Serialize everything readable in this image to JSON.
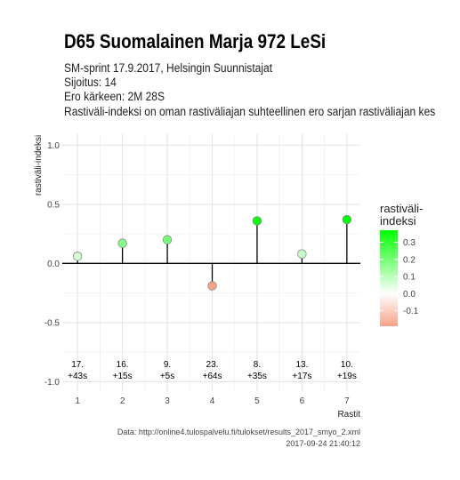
{
  "chart_data": {
    "type": "lollipop",
    "title": "D65 Suomalainen Marja 972 LeSi",
    "subtitle": [
      "SM-sprint 17.9.2017, Helsingin Suunnistajat",
      "Sijoitus: 14",
      "Ero kärkeen: 2M 28S",
      "Rastiväli-indeksi on oman rastiväliajan suhteellinen ero sarjan rastiväliajan kes"
    ],
    "y_label": "rastiväli-indeksi",
    "x_label": "Rastit",
    "x": [
      1,
      2,
      3,
      4,
      5,
      6,
      7
    ],
    "values": [
      0.06,
      0.17,
      0.2,
      -0.19,
      0.36,
      0.08,
      0.37
    ],
    "point_labels": [
      "17.",
      "16.",
      "9.",
      "23.",
      "8.",
      "13.",
      "10."
    ],
    "point_sublabels": [
      "+43s",
      "+15s",
      "+5s",
      "+64s",
      "+35s",
      "+17s",
      "+19s"
    ],
    "label_y": [
      -0.85,
      -0.95
    ],
    "xlim": [
      0.66,
      7.3
    ],
    "ylim": [
      -1.08,
      1.1
    ],
    "xticks": [
      1,
      2,
      3,
      4,
      5,
      6,
      7
    ],
    "x_minor_ticks": [
      1.5,
      2.5,
      3.5,
      4.5,
      5.5,
      6.5
    ],
    "yticks": [
      {
        "value": -1,
        "label": "-1.0"
      },
      {
        "value": -0.5,
        "label": "-0.5"
      },
      {
        "value": 0,
        "label": "0.0"
      },
      {
        "value": 0.5,
        "label": "0.5"
      },
      {
        "value": 1,
        "label": "1.0"
      }
    ],
    "y_minor_ticks": [
      -0.75,
      -0.25,
      0.25,
      0.75
    ],
    "hline": 0,
    "grid": true,
    "colorbar": {
      "title": [
        "rastiväli-",
        "indeksi"
      ],
      "limits": [
        -0.19,
        0.37
      ],
      "colors": {
        "low": "#f6a287",
        "mid": "#ffffff",
        "high": "#00ff00"
      },
      "ticks": [
        {
          "value": 0.3,
          "label": "0.3"
        },
        {
          "value": 0.2,
          "label": "0.2"
        },
        {
          "value": 0.1,
          "label": "0.1"
        },
        {
          "value": 0,
          "label": "0.0"
        },
        {
          "value": -0.1,
          "label": "-0.1"
        }
      ]
    },
    "caption": [
      "Data: http://online4.tulospalvelu.fi/tulokset/results_2017_smyo_2.xml",
      "2017-09-24 21:40:12"
    ]
  }
}
